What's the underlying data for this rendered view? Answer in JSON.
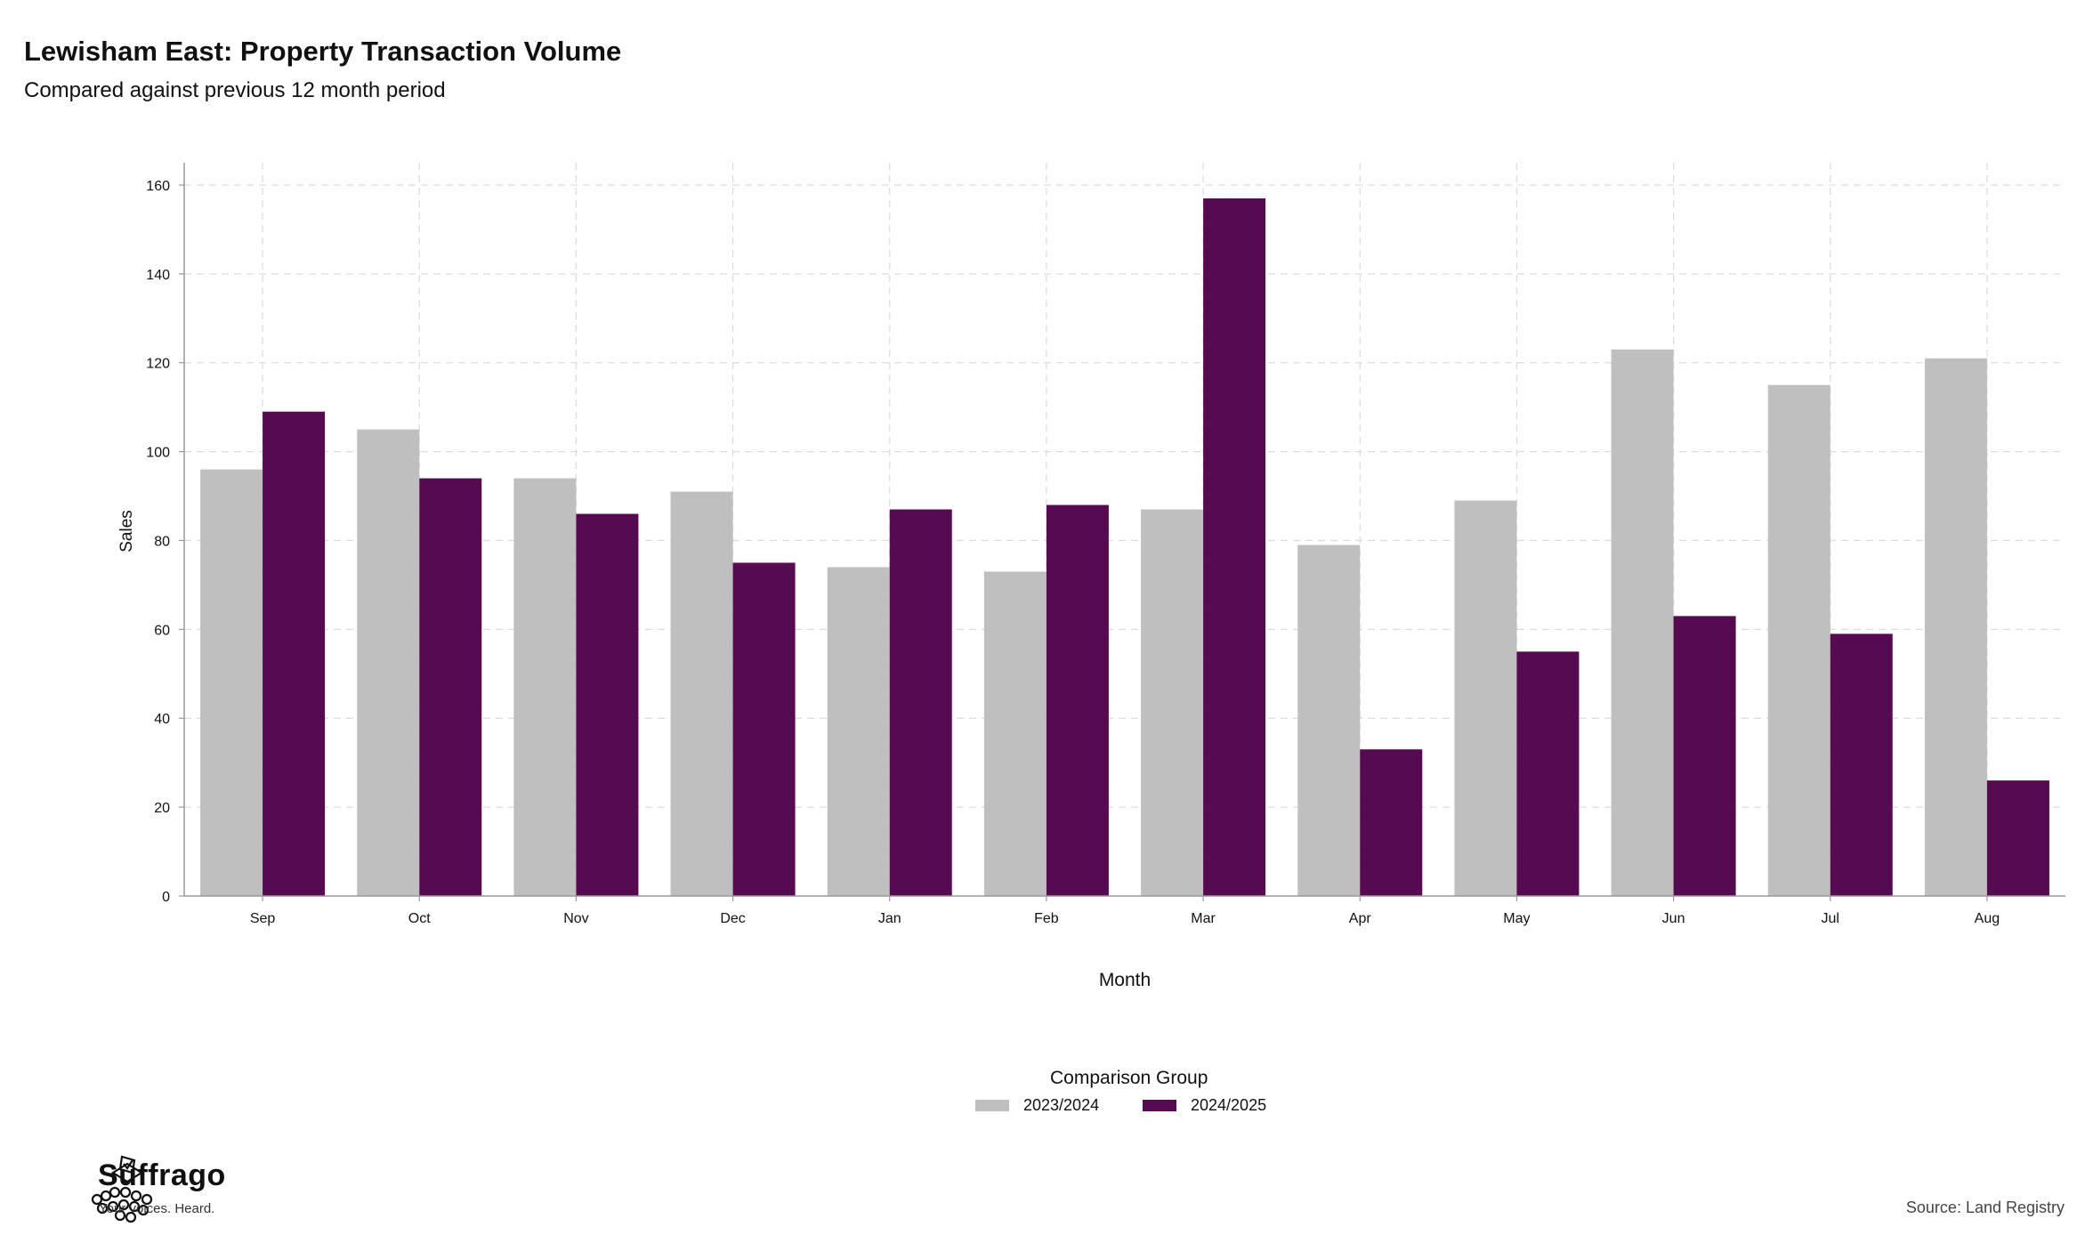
{
  "chart_data": {
    "type": "bar",
    "title": "Lewisham East: Property Transaction Volume",
    "subtitle": "Compared against previous 12 month period",
    "xlabel": "Month",
    "ylabel": "Sales",
    "ylim": [
      0,
      165
    ],
    "yticks": [
      0,
      20,
      40,
      60,
      80,
      100,
      120,
      140,
      160
    ],
    "grid": true,
    "categories": [
      "Sep",
      "Oct",
      "Nov",
      "Dec",
      "Jan",
      "Feb",
      "Mar",
      "Apr",
      "May",
      "Jun",
      "Jul",
      "Aug"
    ],
    "series": [
      {
        "name": "2023/2024",
        "color": "#bfbfbf",
        "values": [
          96,
          105,
          94,
          91,
          74,
          73,
          87,
          79,
          89,
          123,
          115,
          121
        ]
      },
      {
        "name": "2024/2025",
        "color": "#560b51",
        "values": [
          109,
          94,
          86,
          75,
          87,
          88,
          157,
          33,
          55,
          63,
          59,
          26
        ]
      }
    ],
    "legend_title": "Comparison Group",
    "legend_placement": "bottom-center"
  },
  "branding": {
    "logo_name": "Suffrago",
    "logo_tagline": "Your voices. Heard.",
    "logo_icon": "ballot-box-crowd-icon"
  },
  "source": "Source: Land Registry"
}
